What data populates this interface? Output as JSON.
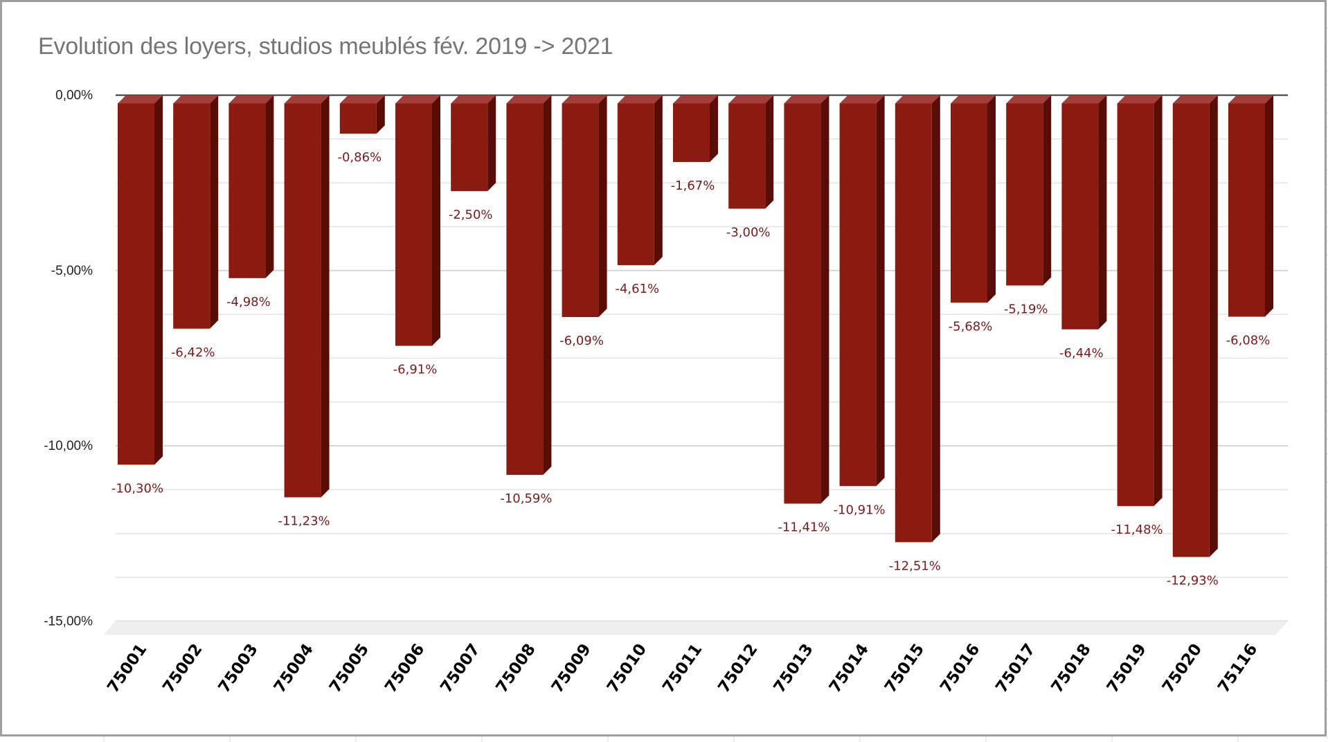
{
  "chart_data": {
    "type": "bar",
    "style": "3d-column",
    "title": "Evolution des loyers, studios meublés fév. 2019 -> 2021",
    "xlabel": "",
    "ylabel": "",
    "ylim": [
      -15,
      0
    ],
    "yticks": [
      0,
      -5,
      -10,
      -15
    ],
    "ytick_labels": [
      "0,00%",
      "-5,00%",
      "-10,00%",
      "-15,00%"
    ],
    "minor_grid_step": 1.25,
    "grid": true,
    "legend": "none",
    "categories": [
      "75001",
      "75002",
      "75003",
      "75004",
      "75005",
      "75006",
      "75007",
      "75008",
      "75009",
      "75010",
      "75011",
      "75012",
      "75013",
      "75014",
      "75015",
      "75016",
      "75017",
      "75018",
      "75019",
      "75020",
      "75116"
    ],
    "values": [
      -10.3,
      -6.42,
      -4.98,
      -11.23,
      -0.86,
      -6.91,
      -2.5,
      -10.59,
      -6.09,
      -4.61,
      -1.67,
      -3.0,
      -11.41,
      -10.91,
      -12.51,
      -5.68,
      -5.19,
      -6.44,
      -11.48,
      -12.93,
      -6.08
    ],
    "data_labels": [
      "-10,30%",
      "-6,42%",
      "-4,98%",
      "-11,23%",
      "-0,86%",
      "-6,91%",
      "-2,50%",
      "-10,59%",
      "-6,09%",
      "-4,61%",
      "-1,67%",
      "-3,00%",
      "-11,41%",
      "-10,91%",
      "-12,51%",
      "-5,68%",
      "-5,19%",
      "-6,44%",
      "-11,48%",
      "-12,93%",
      "-6,08%"
    ],
    "colors": {
      "bar_front": "#8b1a10",
      "bar_top": "#a33d38",
      "bar_side": "#5a0d06",
      "data_label": "#7b1a1a",
      "title": "#757575",
      "grid": "#e3e3e3",
      "axis": "#333333",
      "floor": "#eeeeee"
    }
  }
}
